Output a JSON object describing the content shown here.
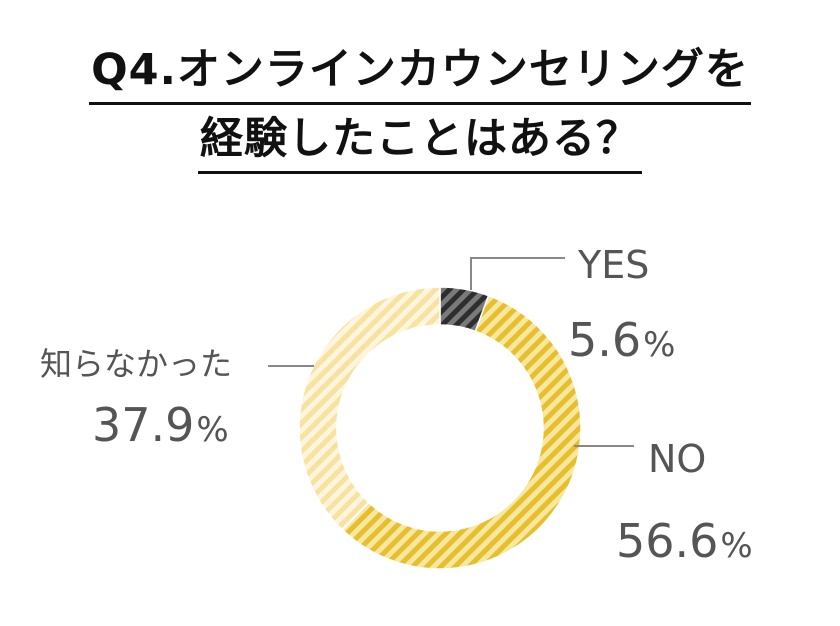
{
  "chart_data": {
    "type": "pie",
    "style": "donut",
    "title_lines": [
      "Q4.オンラインカウンセリングを",
      "経験したことはある？"
    ],
    "slices": [
      {
        "label": "YES",
        "value": 5.6,
        "value_text": "5.6",
        "unit": "%",
        "color": "#7a7a7a",
        "stripe": "#2e2e2e"
      },
      {
        "label": "NO",
        "value": 56.6,
        "value_text": "56.6",
        "unit": "%",
        "color": "#f7e7a0",
        "stripe": "#e7bf2c"
      },
      {
        "label": "知らなかった",
        "value": 37.9,
        "value_text": "37.9",
        "unit": "%",
        "color": "#fdf6dc",
        "stripe": "#f8e2a2"
      }
    ],
    "legend": "none",
    "start_angle": "12 o'clock",
    "direction": "clockwise"
  }
}
